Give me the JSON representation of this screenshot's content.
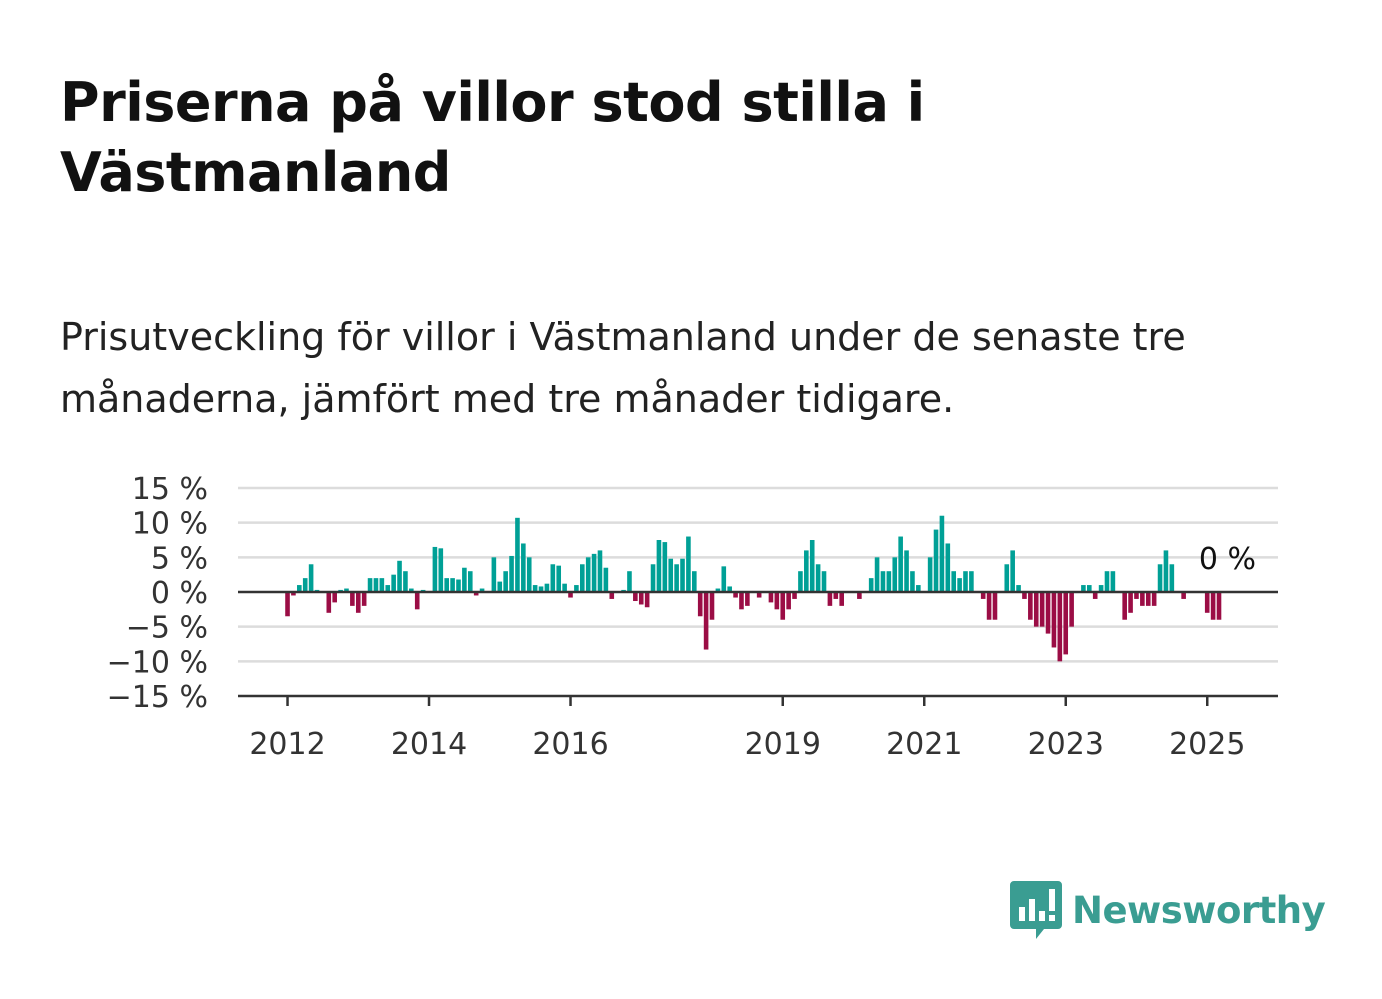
{
  "title": "Priserna på villor stod stilla i Västmanland",
  "subtitle": "Prisutveckling för villor i Västmanland under de senaste tre månaderna, jämfört med tre månader tidigare.",
  "logo": {
    "text": "Newsworthy",
    "icon": "bar-chart-speech-bubble-icon",
    "color": "#3a9d92"
  },
  "chart_data": {
    "type": "bar",
    "yticks": [
      "15 %",
      "10 %",
      "5 %",
      "0 %",
      "−5 %",
      "−10 %",
      "−15 %"
    ],
    "ytick_values": [
      15,
      10,
      5,
      0,
      -5,
      -10,
      -15
    ],
    "ylim": [
      -15,
      15
    ],
    "xticks": [
      "2012",
      "2014",
      "2016",
      "2019",
      "2021",
      "2023",
      "2025"
    ],
    "xtick_values": [
      2012,
      2014,
      2016,
      2019,
      2021,
      2023,
      2025
    ],
    "xlim": [
      2011.3,
      2026.0
    ],
    "start": 2012.0,
    "step": 0.08333,
    "values": [
      -3.5,
      -0.5,
      1.0,
      2.0,
      4.0,
      0.3,
      0,
      -3.0,
      -1.5,
      0.3,
      0.5,
      -2.0,
      -3.0,
      -2.0,
      2.0,
      2.0,
      2.0,
      1.0,
      2.5,
      4.5,
      3.0,
      0.5,
      -2.5,
      0.3,
      0,
      6.5,
      6.3,
      2.0,
      2.0,
      1.8,
      3.5,
      3.0,
      -0.5,
      0.5,
      0,
      5.0,
      1.5,
      3.0,
      5.2,
      10.7,
      7.0,
      5.0,
      1.0,
      0.8,
      1.2,
      4.0,
      3.8,
      1.2,
      -0.8,
      1.0,
      4.0,
      5.0,
      5.5,
      6.0,
      3.5,
      -1.0,
      0,
      0.3,
      3.0,
      -1.3,
      -1.8,
      -2.2,
      4.0,
      7.5,
      7.2,
      4.8,
      4.0,
      4.8,
      8.0,
      3.0,
      -3.5,
      -8.3,
      -4.0,
      0.5,
      3.7,
      0.8,
      -0.8,
      -2.5,
      -2.0,
      0,
      -0.8,
      0,
      -1.5,
      -2.5,
      -4.0,
      -2.5,
      -1.0,
      3.0,
      6.0,
      7.5,
      4.0,
      3.0,
      -2.0,
      -1.0,
      -2.0,
      0,
      0,
      -1.0,
      0,
      2.0,
      5.0,
      3.0,
      3.0,
      5.0,
      8.0,
      6.0,
      3.0,
      1.0,
      0,
      5.0,
      9.0,
      11.0,
      7.0,
      3.0,
      2.0,
      3.0,
      3.0,
      0,
      -1.0,
      -4.0,
      -4.0,
      0,
      4.0,
      6.0,
      1.0,
      -1.0,
      -4.0,
      -5.0,
      -5.0,
      -6.0,
      -8.0,
      -10.0,
      -9.0,
      -5.0,
      0,
      1.0,
      1.0,
      -1.0,
      1.0,
      3.0,
      3.0,
      0,
      -4.0,
      -3.0,
      -1.0,
      -2.0,
      -2.0,
      -2.0,
      4.0,
      6.0,
      4.0,
      0,
      -1.0,
      0,
      0,
      0,
      -3.0,
      -4.0,
      -4.0,
      0
    ],
    "last_value_label": "0 %",
    "positive_color": "#00a096",
    "negative_color": "#9b0d45",
    "grid": true,
    "legend": "none"
  }
}
